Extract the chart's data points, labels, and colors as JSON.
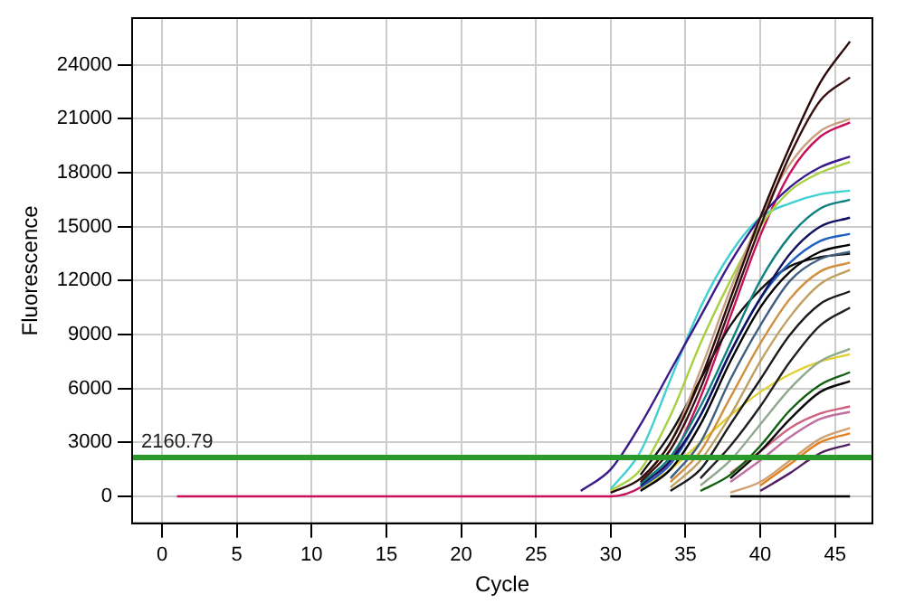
{
  "chart_data": {
    "type": "line",
    "xlabel": "Cycle",
    "ylabel": "Fluorescence",
    "xlim": [
      -2,
      47.5
    ],
    "ylim": [
      -1500,
      26600
    ],
    "xticks": [
      0,
      5,
      10,
      15,
      20,
      25,
      30,
      35,
      40,
      45
    ],
    "yticks": [
      0,
      3000,
      6000,
      9000,
      12000,
      15000,
      18000,
      21000,
      24000
    ],
    "grid": true,
    "legend": false,
    "marker": "none",
    "x": [
      1,
      26,
      28,
      30,
      32,
      34,
      36,
      38,
      40,
      42,
      44,
      46
    ],
    "ref_lines": [
      {
        "axis": "y",
        "value": 2160.79,
        "label": "2160.79",
        "color": "#2a9a2a"
      }
    ],
    "series": [
      {
        "color": "#2b0a0a",
        "values": [
          null,
          null,
          null,
          200,
          1000,
          3000,
          6500,
          11000,
          15500,
          19500,
          23000,
          25300
        ]
      },
      {
        "color": "#3a1010",
        "values": [
          null,
          null,
          null,
          null,
          800,
          2600,
          6000,
          10500,
          15000,
          19000,
          22000,
          23300
        ]
      },
      {
        "color": "#c8a080",
        "values": [
          null,
          null,
          null,
          null,
          900,
          3000,
          7000,
          11500,
          15500,
          18500,
          20300,
          21000
        ]
      },
      {
        "color": "#3a1a8a",
        "values": [
          null,
          null,
          300,
          1500,
          4000,
          7000,
          10000,
          13000,
          15500,
          17200,
          18300,
          18900
        ]
      },
      {
        "color": "#a8d040",
        "values": [
          null,
          null,
          null,
          300,
          1500,
          4500,
          8500,
          12000,
          15000,
          17000,
          18000,
          18600
        ]
      },
      {
        "color": "#40d0d0",
        "values": [
          null,
          null,
          null,
          400,
          2500,
          6500,
          10500,
          13500,
          15500,
          16300,
          16800,
          17000
        ]
      },
      {
        "color": "#108080",
        "values": [
          null,
          null,
          null,
          null,
          700,
          2200,
          5000,
          8500,
          12000,
          14500,
          16000,
          16500
        ]
      },
      {
        "color": "#101060",
        "values": [
          null,
          null,
          null,
          null,
          600,
          2000,
          4500,
          8000,
          11000,
          13500,
          15000,
          15500
        ]
      },
      {
        "color": "#2060c0",
        "values": [
          null,
          null,
          null,
          null,
          500,
          1800,
          4500,
          8000,
          11000,
          13000,
          14200,
          14600
        ]
      },
      {
        "color": "#000000",
        "values": [
          null,
          null,
          null,
          null,
          300,
          1500,
          4000,
          7500,
          10500,
          12500,
          13600,
          14000
        ]
      },
      {
        "color": "#406080",
        "values": [
          null,
          null,
          null,
          null,
          null,
          1000,
          3000,
          6500,
          9500,
          12000,
          13200,
          13600
        ]
      },
      {
        "color": "#111111",
        "values": [
          null,
          null,
          null,
          null,
          1200,
          3500,
          6500,
          9500,
          11500,
          12800,
          13300,
          13500
        ]
      },
      {
        "color": "#d09040",
        "values": [
          null,
          null,
          null,
          null,
          null,
          800,
          2500,
          5500,
          8500,
          11000,
          12500,
          13000
        ]
      },
      {
        "color": "#c0a060",
        "values": [
          null,
          null,
          null,
          null,
          null,
          500,
          2000,
          4500,
          7500,
          10000,
          11800,
          12600
        ]
      },
      {
        "color": "#1a1a1a",
        "values": [
          null,
          null,
          null,
          null,
          null,
          300,
          1500,
          4000,
          6500,
          9000,
          10700,
          11400
        ]
      },
      {
        "color": "#202020",
        "values": [
          null,
          null,
          null,
          null,
          null,
          null,
          1000,
          2800,
          5000,
          7500,
          9500,
          10500
        ]
      },
      {
        "color": "#90a890",
        "values": [
          null,
          null,
          null,
          null,
          null,
          null,
          600,
          2000,
          4000,
          6000,
          7500,
          8200
        ]
      },
      {
        "color": "#e0d030",
        "values": [
          null,
          null,
          null,
          null,
          400,
          1500,
          3000,
          4500,
          5800,
          6800,
          7500,
          7900
        ]
      },
      {
        "color": "#106010",
        "values": [
          null,
          null,
          null,
          null,
          null,
          null,
          300,
          1200,
          2800,
          4800,
          6200,
          6900
        ]
      },
      {
        "color": "#0a0a0a",
        "values": [
          null,
          null,
          null,
          null,
          null,
          null,
          null,
          1000,
          2500,
          4300,
          5800,
          6400
        ]
      },
      {
        "color": "#d06080",
        "values": [
          null,
          null,
          null,
          null,
          null,
          null,
          null,
          1300,
          2500,
          3800,
          4600,
          5000
        ]
      },
      {
        "color": "#c070a0",
        "values": [
          null,
          null,
          null,
          null,
          null,
          null,
          null,
          800,
          2000,
          3300,
          4300,
          4700
        ]
      },
      {
        "color": "#d0a070",
        "values": [
          null,
          null,
          null,
          null,
          null,
          null,
          null,
          200,
          800,
          2000,
          3200,
          3800
        ]
      },
      {
        "color": "#e08020",
        "values": [
          null,
          null,
          null,
          null,
          null,
          null,
          null,
          null,
          600,
          1800,
          3000,
          3500
        ]
      },
      {
        "color": "#502060",
        "values": [
          null,
          null,
          null,
          null,
          null,
          null,
          null,
          null,
          300,
          1300,
          2400,
          2900
        ]
      },
      {
        "color": "#000000",
        "values": [
          null,
          null,
          null,
          null,
          null,
          null,
          null,
          0,
          0,
          0,
          0,
          0
        ]
      },
      {
        "color": "#c8105a",
        "values": [
          0,
          0,
          0,
          0,
          500,
          2000,
          5500,
          10000,
          14500,
          18000,
          20000,
          20800
        ]
      }
    ]
  }
}
